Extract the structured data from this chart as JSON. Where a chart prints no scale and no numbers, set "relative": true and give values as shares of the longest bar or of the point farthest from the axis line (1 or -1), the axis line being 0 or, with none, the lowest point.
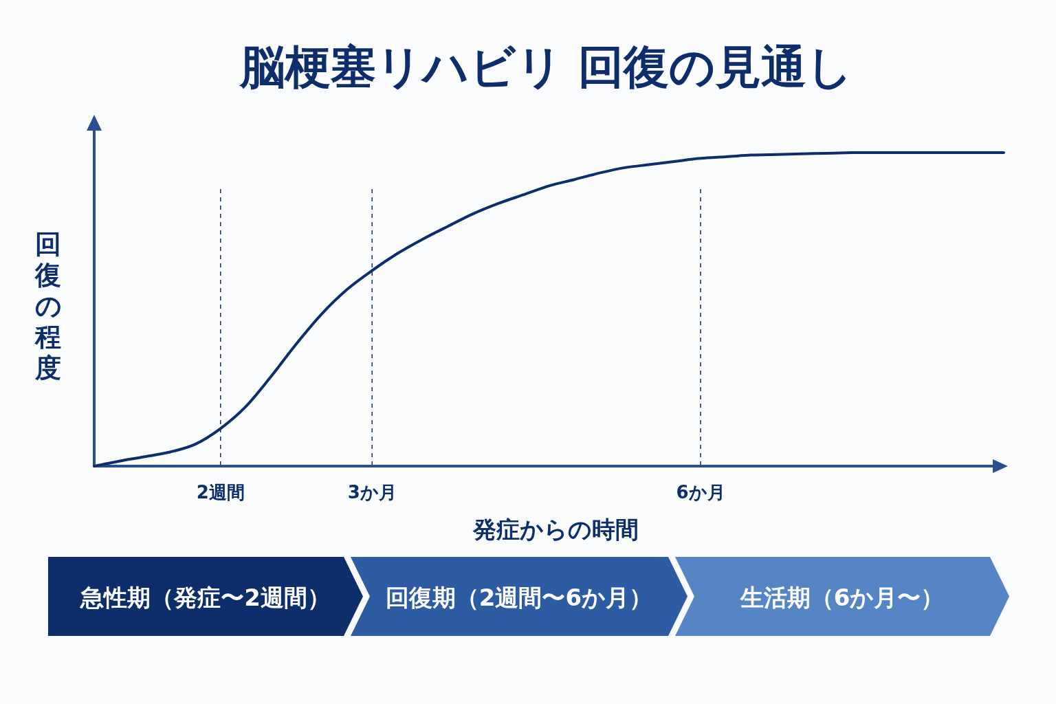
{
  "chart_data": {
    "type": "line",
    "title": "脳梗塞リハビリ 回復の見通し",
    "xlabel": "発症からの時間",
    "ylabel": "回復の程度",
    "relative": true,
    "categories": [
      null,
      null,
      null,
      null,
      null,
      "2週間",
      null,
      null,
      null,
      null,
      null,
      "3か月",
      null,
      null,
      null,
      null,
      null,
      null,
      null,
      null,
      null,
      null,
      null,
      null,
      "6か月",
      null,
      null,
      null,
      null,
      null,
      null,
      null,
      null,
      null,
      null,
      null,
      null
    ],
    "values": [
      0,
      0.016,
      0.03,
      0.045,
      0.07,
      0.12,
      0.19,
      0.286,
      0.39,
      0.485,
      0.563,
      0.624,
      0.678,
      0.724,
      0.765,
      0.805,
      0.838,
      0.866,
      0.894,
      0.914,
      0.935,
      0.952,
      0.962,
      0.972,
      0.982,
      0.987,
      0.992,
      0.994,
      0.996,
      0.998,
      1,
      1,
      1,
      1,
      1,
      1,
      1
    ],
    "color": "#0d2d6b",
    "ref_lines": [
      {
        "axis": "x",
        "value": "2週間",
        "line_style": "dashed",
        "color": "#0d2d6b"
      },
      {
        "axis": "x",
        "value": "3か月",
        "line_style": "dashed",
        "color": "#0d2d6b"
      },
      {
        "axis": "x",
        "value": "6か月",
        "line_style": "dashed",
        "color": "#0d2d6b"
      }
    ],
    "annotations": [
      "急性期（発症〜2週間）",
      "回復期（2週間〜6か月）",
      "生活期（6か月〜）"
    ]
  }
}
